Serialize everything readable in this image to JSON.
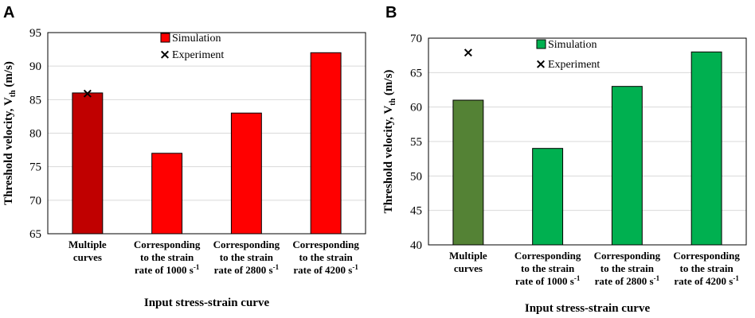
{
  "chart_data": [
    {
      "panel_label": "A",
      "type": "bar",
      "categories": [
        [
          "Multiple",
          "curves"
        ],
        [
          "Corresponding",
          "to the strain",
          "rate of 1000 s",
          "-1"
        ],
        [
          "Corresponding",
          "to the strain",
          "rate of 2800 s",
          "-1"
        ],
        [
          "Corresponding",
          "to the strain",
          "rate of 4200 s",
          "-1"
        ]
      ],
      "series": [
        {
          "name": "Simulation",
          "values": [
            86,
            77,
            83,
            92
          ],
          "color": "#ff0000",
          "point_colors": [
            "#c00000",
            "#ff0000",
            "#ff0000",
            "#ff0000"
          ]
        },
        {
          "name": "Experiment",
          "type": "scatter",
          "marker": "×",
          "points": [
            {
              "category_index": 0,
              "value": 86
            }
          ]
        }
      ],
      "ylabel": {
        "main": "Threshold velocity, V",
        "sub": "th",
        "unit": " (m/s)"
      },
      "xlabel": "Input stress-strain curve",
      "ylim": [
        65,
        95
      ],
      "yticks": [
        65,
        70,
        75,
        80,
        85,
        90,
        95
      ],
      "grid": true,
      "legend_placement": "top-center"
    },
    {
      "panel_label": "B",
      "type": "bar",
      "categories": [
        [
          "Multiple",
          "curves"
        ],
        [
          "Corresponding",
          "to the strain",
          "rate of 1000 s",
          "-1"
        ],
        [
          "Corresponding",
          "to the strain",
          "rate of 2800 s",
          "-1"
        ],
        [
          "Corresponding",
          "to the strain",
          "rate of 4200 s",
          "-1"
        ]
      ],
      "series": [
        {
          "name": "Simulation",
          "values": [
            61,
            54,
            63,
            68
          ],
          "color": "#00b050",
          "point_colors": [
            "#548235",
            "#00b050",
            "#00b050",
            "#00b050"
          ]
        },
        {
          "name": "Experiment",
          "type": "scatter",
          "marker": "×",
          "points": [
            {
              "category_index": 0,
              "value": 68
            }
          ]
        }
      ],
      "ylabel": {
        "main": "Threshold velocity, V",
        "sub": "th",
        "unit": " (m/s)"
      },
      "xlabel": "Input stress-strain curve",
      "ylim": [
        40,
        70
      ],
      "yticks": [
        40,
        45,
        50,
        55,
        60,
        65,
        70
      ],
      "grid": true,
      "legend_placement": "top-center"
    }
  ]
}
